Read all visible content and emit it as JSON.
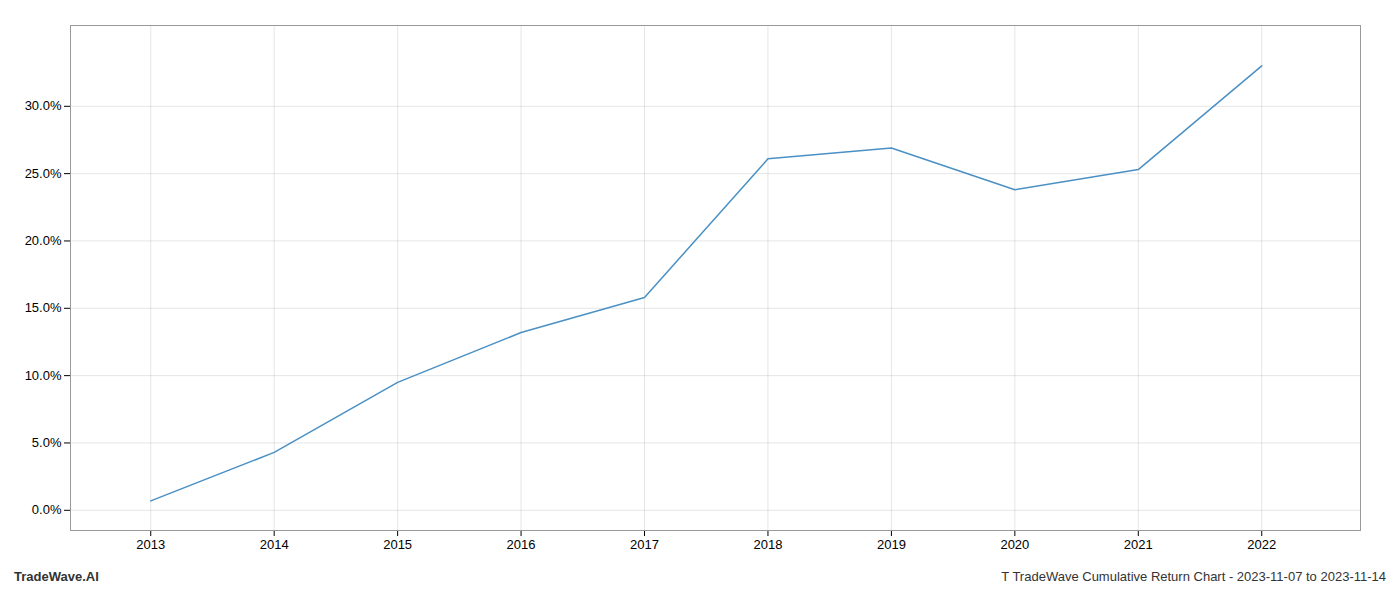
{
  "chart_data": {
    "type": "line",
    "x": [
      2013,
      2014,
      2015,
      2016,
      2017,
      2018,
      2019,
      2020,
      2021,
      2022
    ],
    "values": [
      0.7,
      4.3,
      9.5,
      13.2,
      15.8,
      26.1,
      26.9,
      23.8,
      25.3,
      33.0
    ],
    "color": "#4a90c4",
    "xlim": [
      2012.35,
      2022.8
    ],
    "xticks": [
      2013,
      2014,
      2015,
      2016,
      2017,
      2018,
      2019,
      2020,
      2021,
      2022
    ],
    "ylim": [
      -1.5,
      36
    ],
    "yticks": [
      {
        "value": 0.0,
        "label": "0.0%"
      },
      {
        "value": 5.0,
        "label": "5.0%"
      },
      {
        "value": 10.0,
        "label": "10.0%"
      },
      {
        "value": 15.0,
        "label": "15.0%"
      },
      {
        "value": 20.0,
        "label": "20.0%"
      },
      {
        "value": 25.0,
        "label": "25.0%"
      },
      {
        "value": 30.0,
        "label": "30.0%"
      }
    ],
    "grid": true,
    "annotations": [
      "TradeWave.AI",
      "T TradeWave Cumulative Return Chart - 2023-11-07 to 2023-11-14"
    ]
  }
}
